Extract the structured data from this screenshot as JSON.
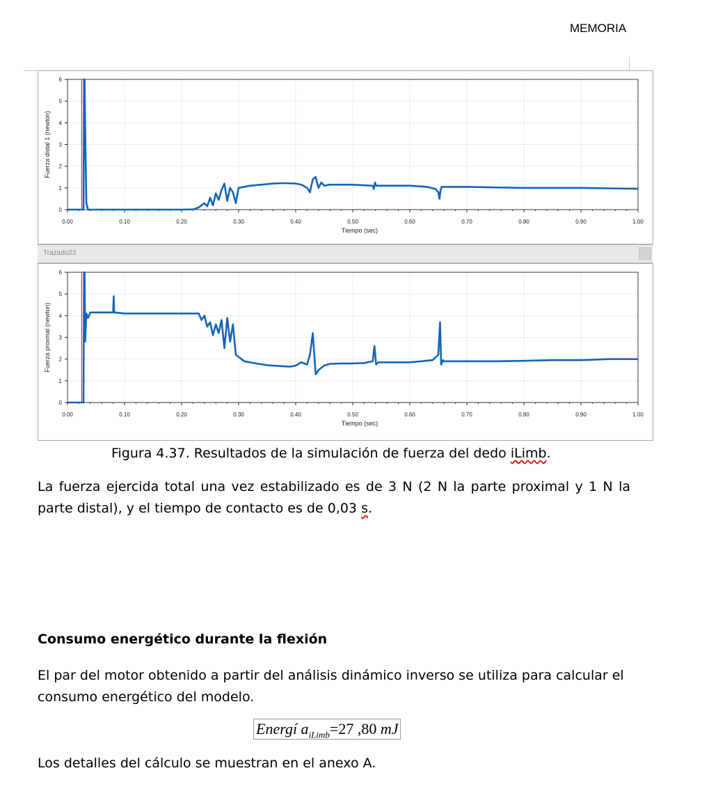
{
  "header": {
    "section": "MEMORIA"
  },
  "plot_window": {
    "title": "Trazado23"
  },
  "chart_data": [
    {
      "type": "line",
      "xlabel": "Tiempo (sec)",
      "ylabel": "Fuerza distal 1 (newton)",
      "xlim": [
        0,
        1
      ],
      "ylim": [
        0,
        6
      ],
      "xticks": [
        "0.00",
        "0.10",
        "0.20",
        "0.30",
        "0.40",
        "0.50",
        "0.60",
        "0.70",
        "0.80",
        "0.90",
        "1.00"
      ],
      "yticks": [
        "0",
        "1",
        "2",
        "3",
        "4",
        "5",
        "6"
      ],
      "grid": true,
      "colors": {
        "series": "#1464b8",
        "marker": "#cc2222"
      },
      "contact_marker_x": 0.025,
      "series": [
        {
          "x": [
            0,
            0.028,
            0.029,
            0.03,
            0.031,
            0.033,
            0.036,
            0.05,
            0.1,
            0.2,
            0.22,
            0.23,
            0.24,
            0.245,
            0.25,
            0.255,
            0.26,
            0.265,
            0.27,
            0.275,
            0.28,
            0.285,
            0.29,
            0.295,
            0.3,
            0.31,
            0.32,
            0.34,
            0.36,
            0.38,
            0.4,
            0.41,
            0.42,
            0.425,
            0.43,
            0.435,
            0.44,
            0.445,
            0.45,
            0.46,
            0.48,
            0.5,
            0.52,
            0.535,
            0.537,
            0.539,
            0.541,
            0.545,
            0.55,
            0.57,
            0.6,
            0.63,
            0.645,
            0.65,
            0.652,
            0.654,
            0.656,
            0.66,
            0.67,
            0.7,
            0.75,
            0.8,
            0.85,
            0.9,
            0.95,
            1.0
          ],
          "y": [
            0,
            0,
            6,
            6,
            3.8,
            0.3,
            0,
            0,
            0,
            0,
            0.01,
            0.1,
            0.3,
            0.15,
            0.55,
            0.2,
            0.75,
            0.45,
            0.9,
            1.2,
            0.4,
            1.0,
            0.8,
            0.3,
            1.0,
            1.05,
            1.1,
            1.15,
            1.2,
            1.22,
            1.2,
            1.15,
            1.0,
            0.8,
            1.4,
            1.5,
            1.0,
            1.25,
            1.1,
            1.15,
            1.15,
            1.15,
            1.12,
            1.1,
            0.95,
            1.25,
            1.1,
            1.1,
            1.1,
            1.1,
            1.1,
            1.05,
            0.95,
            0.8,
            0.5,
            0.9,
            1.05,
            1.05,
            1.05,
            1.05,
            1.02,
            1.0,
            1.0,
            1.0,
            0.98,
            0.96
          ]
        }
      ]
    },
    {
      "type": "line",
      "xlabel": "Tiempo (sec)",
      "ylabel": "Fuerza proxmal (newton)",
      "xlim": [
        0,
        1
      ],
      "ylim": [
        0,
        6
      ],
      "xticks": [
        "0.00",
        "0.10",
        "0.20",
        "0.30",
        "0.40",
        "0.50",
        "0.60",
        "0.70",
        "0.80",
        "0.90",
        "1.00"
      ],
      "yticks": [
        "0",
        "1",
        "2",
        "3",
        "4",
        "5",
        "6"
      ],
      "grid": true,
      "colors": {
        "series": "#1464b8",
        "marker": "#cc2222"
      },
      "contact_marker_x": 0.025,
      "series": [
        {
          "x": [
            0,
            0.028,
            0.029,
            0.03,
            0.031,
            0.033,
            0.036,
            0.04,
            0.05,
            0.08,
            0.081,
            0.082,
            0.1,
            0.15,
            0.2,
            0.23,
            0.235,
            0.24,
            0.245,
            0.25,
            0.255,
            0.26,
            0.265,
            0.27,
            0.275,
            0.28,
            0.285,
            0.29,
            0.295,
            0.3,
            0.31,
            0.33,
            0.35,
            0.37,
            0.39,
            0.4,
            0.41,
            0.42,
            0.425,
            0.43,
            0.435,
            0.44,
            0.45,
            0.46,
            0.48,
            0.5,
            0.52,
            0.535,
            0.538,
            0.541,
            0.545,
            0.56,
            0.6,
            0.62,
            0.64,
            0.65,
            0.653,
            0.655,
            0.658,
            0.66,
            0.7,
            0.75,
            0.8,
            0.85,
            0.9,
            0.95,
            1.0
          ],
          "y": [
            0,
            0,
            6,
            6,
            2.8,
            4.1,
            3.9,
            4.15,
            4.15,
            4.15,
            4.9,
            4.15,
            4.1,
            4.1,
            4.1,
            4.1,
            3.8,
            4.0,
            3.5,
            3.7,
            3.1,
            3.6,
            3.2,
            3.8,
            2.5,
            3.9,
            2.8,
            3.6,
            2.2,
            2.1,
            1.9,
            1.8,
            1.72,
            1.68,
            1.65,
            1.7,
            1.85,
            1.75,
            2.2,
            3.2,
            1.3,
            1.5,
            1.7,
            1.78,
            1.8,
            1.8,
            1.82,
            1.9,
            2.6,
            1.75,
            1.85,
            1.85,
            1.85,
            1.9,
            1.95,
            2.2,
            3.7,
            1.75,
            1.95,
            1.9,
            1.9,
            1.9,
            1.92,
            1.95,
            1.95,
            2.0,
            2.0
          ]
        }
      ]
    }
  ],
  "caption": {
    "prefix": "Figura 4.37. Resultados de la simulación de fuerza del dedo ",
    "term": "iLimb",
    "suffix": "."
  },
  "paragraph1": {
    "main": "La fuerza ejercida total una vez estabilizado es de 3 N (2 N la parte proximal y 1 N la parte distal), y el tiempo de contacto es de 0,03 ",
    "unit": "s",
    "end": "."
  },
  "heading": "Consumo energético durante la flexión",
  "paragraph2": "El par del motor obtenido a partir del análisis dinámico inverso se utiliza para calcular el consumo energético del modelo.",
  "formula": {
    "lhs": "Energí a",
    "subscript": "iLimb",
    "equals": "=",
    "value": "27 ,80",
    "unit": "mJ"
  },
  "paragraph3": "Los detalles del cálculo se muestran en el anexo A."
}
